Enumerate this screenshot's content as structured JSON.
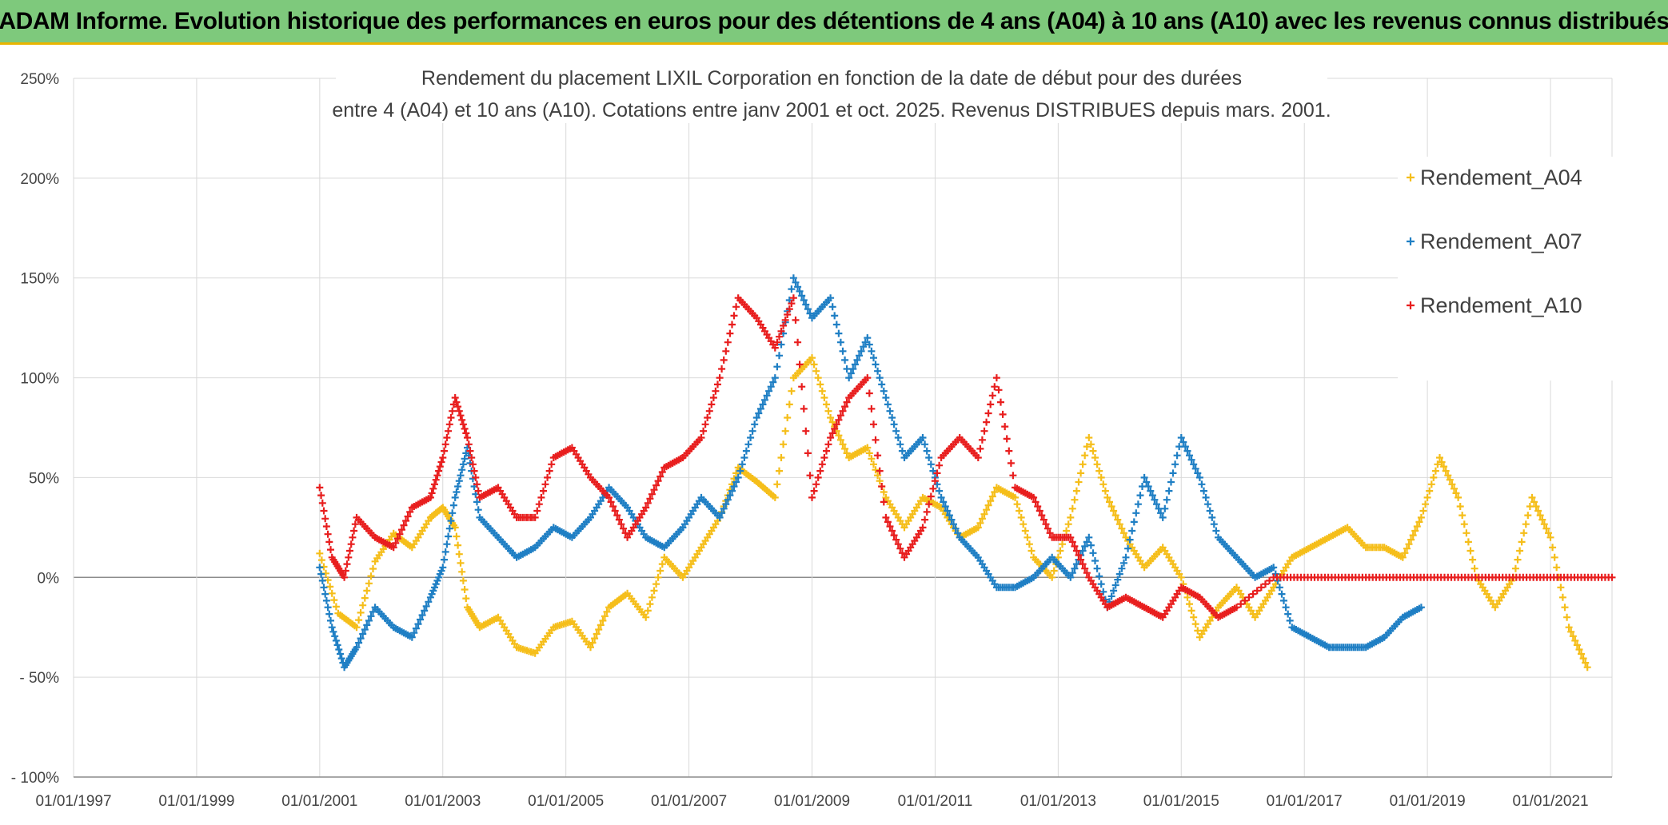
{
  "banner": {
    "title": "ADAM Informe. Evolution historique des performances en euros pour des détentions de 4 ans (A04) à 10 ans (A10) avec les revenus connus distribués"
  },
  "chart_data": {
    "type": "scatter",
    "title_line1": "Rendement du placement LIXIL Corporation en fonction de la date de début pour des durées",
    "title_line2": "entre 4 (A04) et 10 ans (A10). Cotations entre janv 2001 et oct. 2025. Revenus DISTRIBUES depuis mars. 2001.",
    "xlabel": "",
    "ylabel": "",
    "x_range": [
      1997.0,
      2022.0
    ],
    "ylim": [
      -100,
      250
    ],
    "y_ticks": [
      250,
      200,
      150,
      100,
      50,
      0,
      -50,
      -100
    ],
    "y_tick_labels": [
      "250%",
      "200%",
      "150%",
      "100%",
      "50%",
      "0%",
      "- 50%",
      "- 100%"
    ],
    "x_ticks": [
      1997,
      1999,
      2001,
      2003,
      2005,
      2007,
      2009,
      2011,
      2013,
      2015,
      2017,
      2019,
      2021
    ],
    "x_tick_labels": [
      "01/01/1997",
      "01/01/1999",
      "01/01/2001",
      "01/01/2003",
      "01/01/2005",
      "01/01/2007",
      "01/01/2009",
      "01/01/2011",
      "01/01/2013",
      "01/01/2015",
      "01/01/2017",
      "01/01/2019",
      "01/01/2021"
    ],
    "grid": true,
    "legend_position": "top-right",
    "marker": "+",
    "series": [
      {
        "name": "Rendement_A04",
        "color": "#f5be1a",
        "x": [
          2001.0,
          2001.3,
          2001.6,
          2001.9,
          2002.2,
          2002.5,
          2002.8,
          2003.0,
          2003.2,
          2003.4,
          2003.6,
          2003.9,
          2004.2,
          2004.5,
          2004.8,
          2005.1,
          2005.4,
          2005.7,
          2006.0,
          2006.3,
          2006.6,
          2006.9,
          2007.2,
          2007.5,
          2007.8,
          2008.1,
          2008.4,
          2008.7,
          2009.0,
          2009.3,
          2009.6,
          2009.9,
          2010.2,
          2010.5,
          2010.8,
          2011.1,
          2011.4,
          2011.7,
          2012.0,
          2012.3,
          2012.6,
          2012.9,
          2013.2,
          2013.5,
          2013.8,
          2014.1,
          2014.4,
          2014.7,
          2015.0,
          2015.3,
          2015.6,
          2015.9,
          2016.2,
          2016.5,
          2016.8,
          2017.1,
          2017.4,
          2017.7,
          2018.0,
          2018.3,
          2018.6,
          2018.9,
          2019.2,
          2019.5,
          2019.8,
          2020.1,
          2020.4,
          2020.7,
          2021.0,
          2021.3,
          2021.6
        ],
        "y": [
          12,
          -18,
          -25,
          8,
          22,
          15,
          30,
          35,
          25,
          -15,
          -25,
          -20,
          -35,
          -38,
          -25,
          -22,
          -35,
          -15,
          -8,
          -20,
          10,
          0,
          15,
          30,
          55,
          48,
          40,
          100,
          110,
          80,
          60,
          65,
          40,
          25,
          40,
          35,
          20,
          25,
          45,
          40,
          10,
          0,
          30,
          70,
          40,
          20,
          5,
          15,
          0,
          -30,
          -15,
          -5,
          -20,
          -5,
          10,
          15,
          20,
          25,
          15,
          15,
          10,
          30,
          60,
          40,
          0,
          -15,
          0,
          40,
          20,
          -25,
          -45
        ]
      },
      {
        "name": "Rendement_A07",
        "color": "#1f7fc4",
        "x": [
          2001.0,
          2001.2,
          2001.4,
          2001.6,
          2001.9,
          2002.2,
          2002.5,
          2002.8,
          2003.0,
          2003.2,
          2003.4,
          2003.6,
          2003.9,
          2004.2,
          2004.5,
          2004.8,
          2005.1,
          2005.4,
          2005.7,
          2006.0,
          2006.3,
          2006.6,
          2006.9,
          2007.2,
          2007.5,
          2007.8,
          2008.1,
          2008.4,
          2008.7,
          2009.0,
          2009.3,
          2009.6,
          2009.9,
          2010.2,
          2010.5,
          2010.8,
          2011.1,
          2011.4,
          2011.7,
          2012.0,
          2012.3,
          2012.6,
          2012.9,
          2013.2,
          2013.5,
          2013.8,
          2014.1,
          2014.4,
          2014.7,
          2015.0,
          2015.3,
          2015.6,
          2015.9,
          2016.2,
          2016.5,
          2016.8,
          2017.1,
          2017.4,
          2017.7,
          2018.0,
          2018.3,
          2018.6,
          2018.9
        ],
        "y": [
          5,
          -25,
          -45,
          -35,
          -15,
          -25,
          -30,
          -10,
          5,
          40,
          65,
          30,
          20,
          10,
          15,
          25,
          20,
          30,
          45,
          35,
          20,
          15,
          25,
          40,
          30,
          50,
          80,
          100,
          150,
          130,
          140,
          100,
          120,
          90,
          60,
          70,
          40,
          20,
          10,
          -5,
          -5,
          0,
          10,
          0,
          20,
          -15,
          10,
          50,
          30,
          70,
          50,
          20,
          10,
          0,
          5,
          -25,
          -30,
          -35,
          -35,
          -35,
          -30,
          -20,
          -15
        ]
      },
      {
        "name": "Rendement_A10",
        "color": "#e81e1e",
        "x": [
          2001.0,
          2001.2,
          2001.4,
          2001.6,
          2001.9,
          2002.2,
          2002.5,
          2002.8,
          2003.0,
          2003.2,
          2003.4,
          2003.6,
          2003.9,
          2004.2,
          2004.5,
          2004.8,
          2005.1,
          2005.4,
          2005.7,
          2006.0,
          2006.3,
          2006.6,
          2006.9,
          2007.2,
          2007.5,
          2007.8,
          2008.1,
          2008.4,
          2008.7,
          2009.0,
          2009.3,
          2009.6,
          2009.9,
          2010.2,
          2010.5,
          2010.8,
          2011.1,
          2011.4,
          2011.7,
          2012.0,
          2012.3,
          2012.6,
          2012.9,
          2013.2,
          2013.5,
          2013.8,
          2014.1,
          2014.4,
          2014.7,
          2015.0,
          2015.3,
          2015.6,
          2015.9,
          2016.5,
          2017.0,
          2017.5,
          2018.0,
          2018.5,
          2019.0,
          2019.5,
          2020.0,
          2020.5,
          2021.0,
          2021.5,
          2022.0
        ],
        "y": [
          45,
          10,
          0,
          30,
          20,
          15,
          35,
          40,
          60,
          90,
          70,
          40,
          45,
          30,
          30,
          60,
          65,
          50,
          40,
          20,
          35,
          55,
          60,
          70,
          100,
          140,
          130,
          115,
          140,
          40,
          70,
          90,
          100,
          30,
          10,
          25,
          60,
          70,
          60,
          100,
          45,
          40,
          20,
          20,
          0,
          -15,
          -10,
          -15,
          -20,
          -5,
          -10,
          -20,
          -15,
          0,
          0,
          0,
          0,
          0,
          0,
          0,
          0,
          0,
          0,
          0,
          0
        ]
      }
    ]
  }
}
